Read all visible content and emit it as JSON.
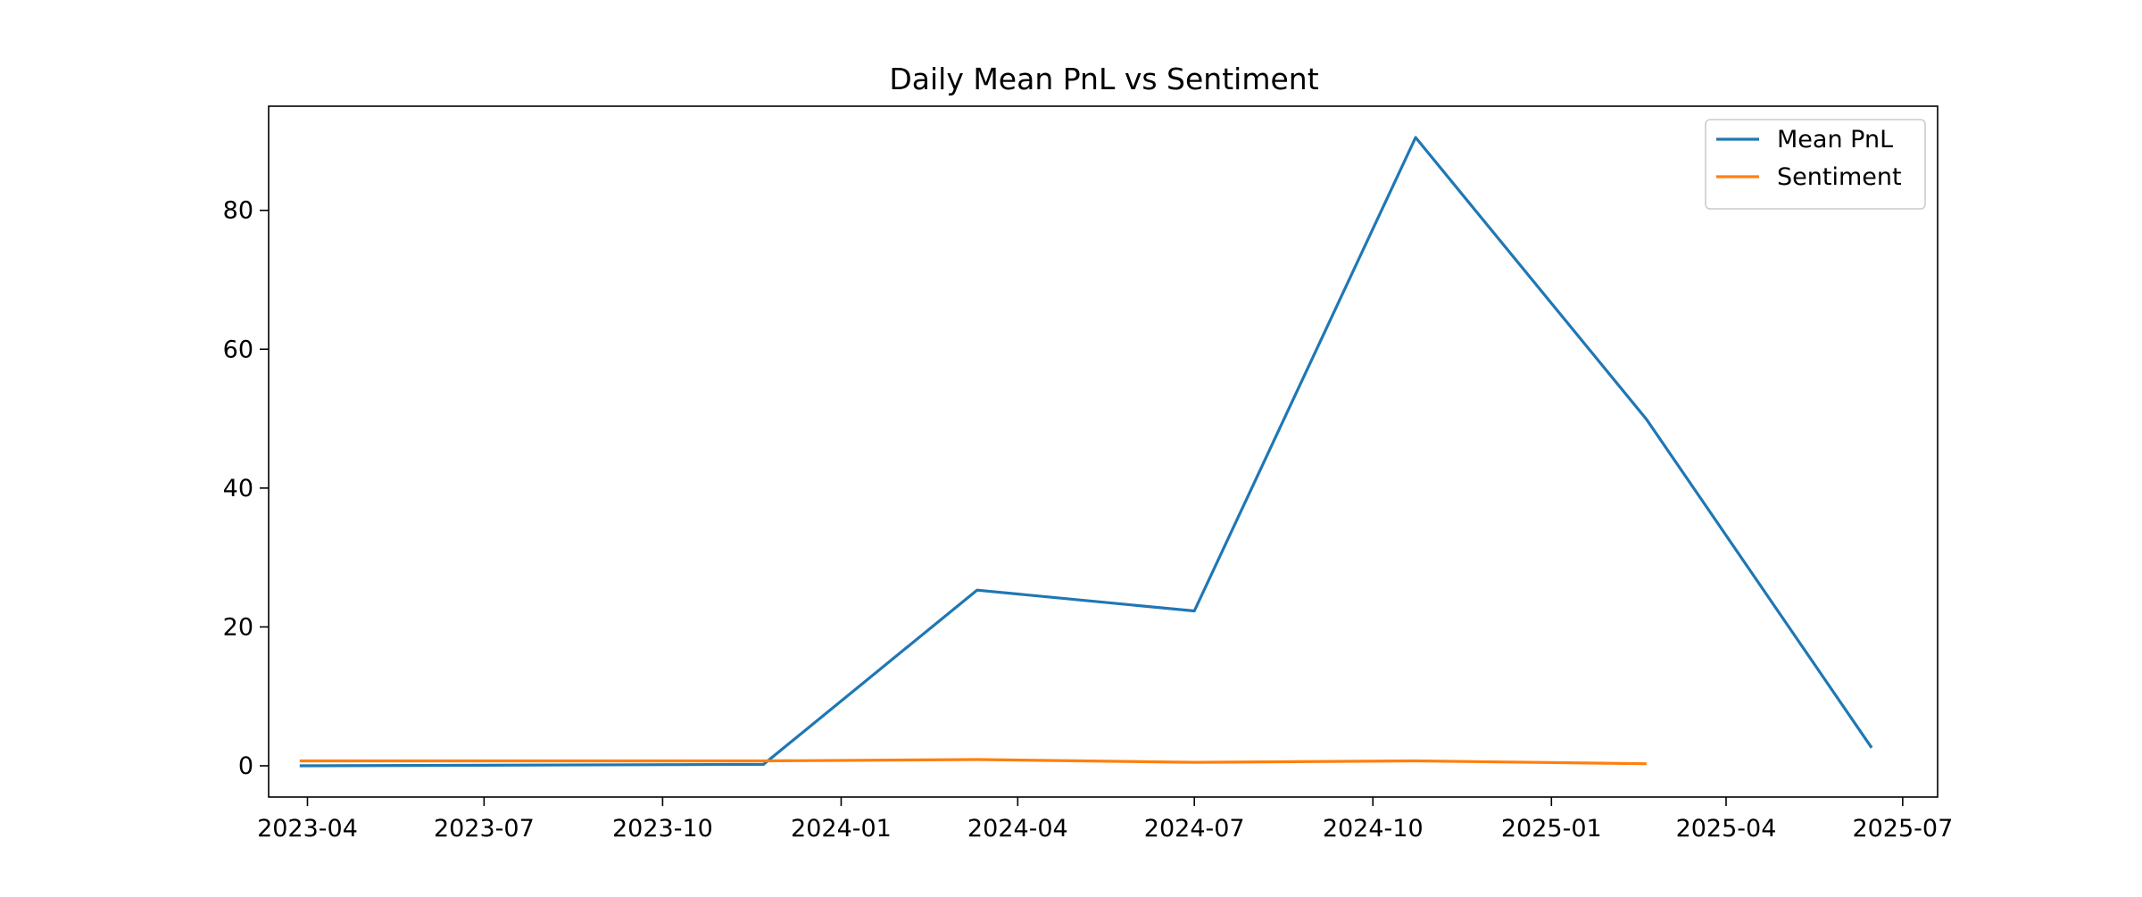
{
  "chart_data": {
    "type": "line",
    "title": "Daily Mean PnL vs Sentiment",
    "xlabel": "",
    "ylabel": "",
    "x_type": "date",
    "xlim": [
      "2023-03-12",
      "2025-07-19"
    ],
    "ylim": [
      -4.5,
      95.0
    ],
    "x_ticks": [
      "2023-04-01",
      "2023-07-01",
      "2023-10-01",
      "2024-01-01",
      "2024-04-01",
      "2024-07-01",
      "2024-10-01",
      "2025-01-01",
      "2025-04-01",
      "2025-07-01"
    ],
    "x_tick_labels": [
      "2023-04",
      "2023-07",
      "2023-10",
      "2024-01",
      "2024-04",
      "2024-07",
      "2024-10",
      "2025-01",
      "2025-04",
      "2025-07"
    ],
    "y_ticks": [
      0,
      20,
      40,
      60,
      80
    ],
    "y_tick_labels": [
      "0",
      "20",
      "40",
      "60",
      "80"
    ],
    "grid": false,
    "legend_position": "top-right",
    "series": [
      {
        "name": "Mean PnL",
        "color": "#1f77b4",
        "x": [
          "2023-03-28",
          "2023-11-22",
          "2024-03-11",
          "2024-07-01",
          "2024-10-23",
          "2025-02-19",
          "2025-06-15"
        ],
        "values": [
          0.0,
          0.2,
          25.3,
          22.3,
          90.5,
          49.9,
          2.6
        ]
      },
      {
        "name": "Sentiment",
        "color": "#ff7f0e",
        "x": [
          "2023-03-28",
          "2023-11-22",
          "2024-03-11",
          "2024-07-01",
          "2024-10-23",
          "2025-02-19"
        ],
        "values": [
          0.7,
          0.7,
          0.9,
          0.5,
          0.7,
          0.3
        ]
      }
    ]
  }
}
